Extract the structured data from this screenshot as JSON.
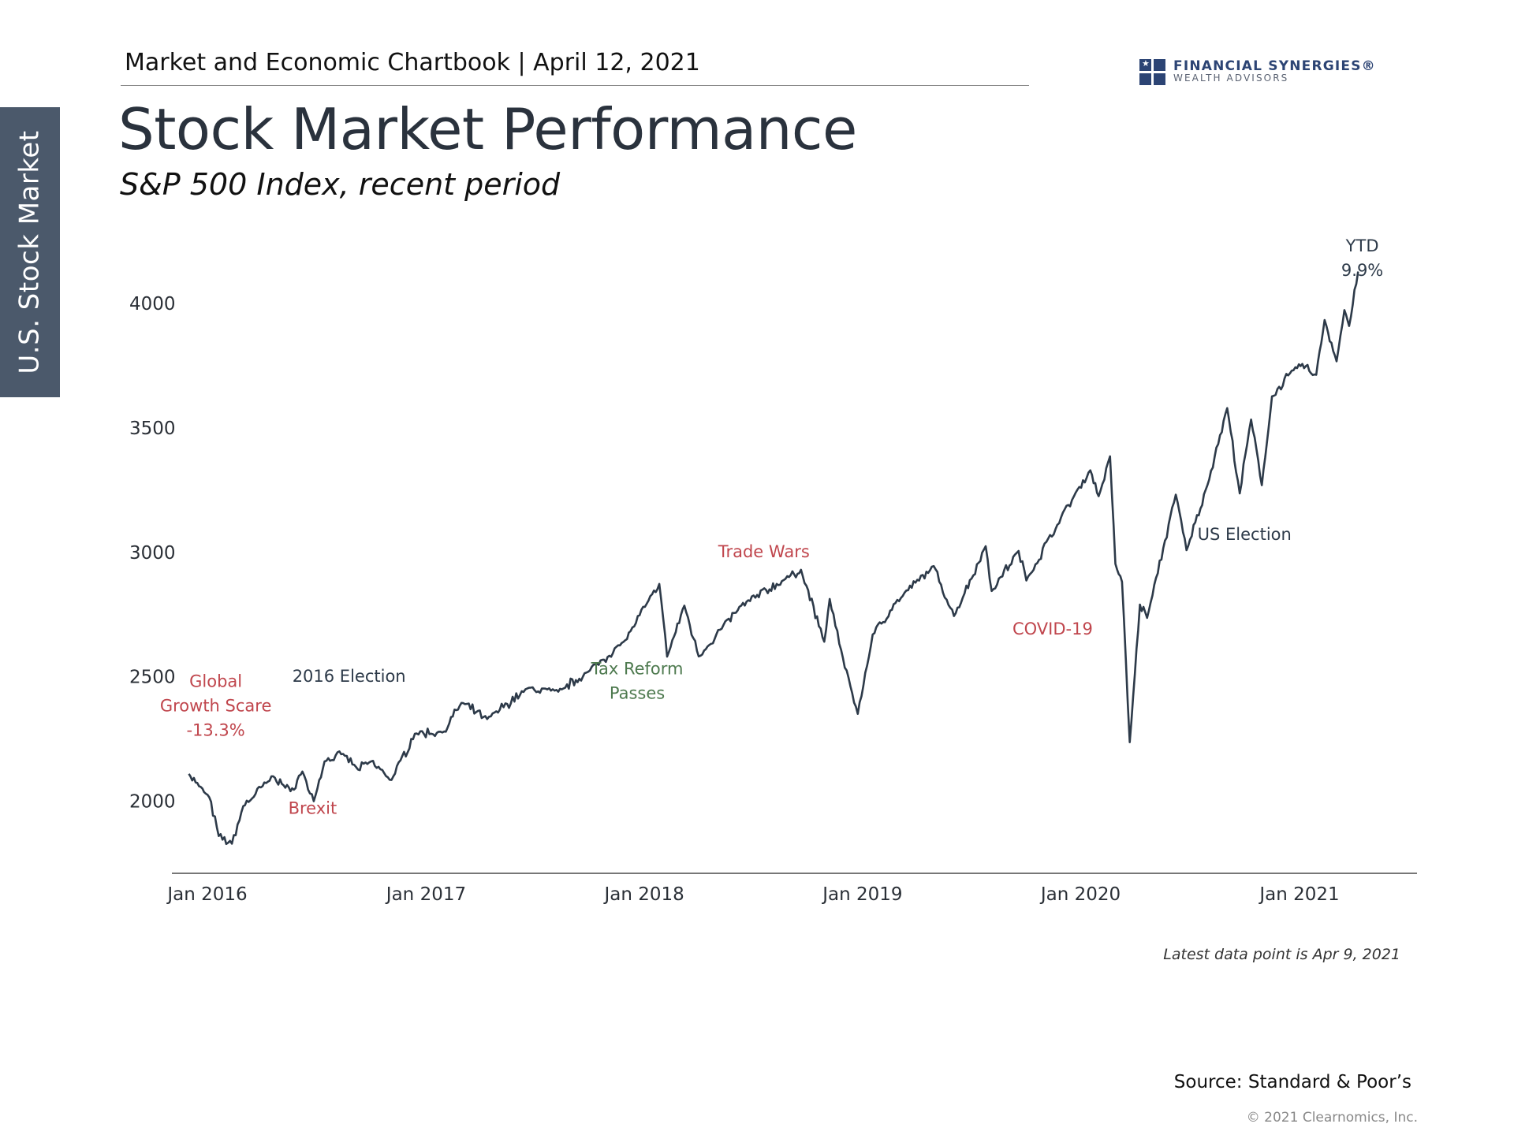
{
  "sidebar": {
    "label": "U.S. Stock Market"
  },
  "header": {
    "text": "Market and Economic Chartbook | April 12, 2021"
  },
  "logo": {
    "line1": "FINANCIAL SYNERGIES®",
    "line2": "WEALTH ADVISORS",
    "color": "#2c4474"
  },
  "title": "Stock Market Performance",
  "subtitle": "S&P 500 Index, recent period",
  "note": "Latest data point is Apr 9, 2021",
  "source": "Source: Standard & Poor’s",
  "copyright": "© 2021 Clearnomics, Inc.",
  "chart_data": {
    "type": "line",
    "title": "",
    "xlabel": "",
    "ylabel": "",
    "ylim": [
      1710,
      4270
    ],
    "xlim": [
      "2016-01-01",
      "2021-04-30"
    ],
    "yticks": [
      2000,
      2500,
      3000,
      3500,
      4000
    ],
    "xticks": [
      {
        "date": "2016-01-01",
        "label": "Jan 2016"
      },
      {
        "date": "2017-01-01",
        "label": "Jan 2017"
      },
      {
        "date": "2018-01-01",
        "label": "Jan 2018"
      },
      {
        "date": "2019-01-01",
        "label": "Jan 2019"
      },
      {
        "date": "2020-01-01",
        "label": "Jan 2020"
      },
      {
        "date": "2021-01-01",
        "label": "Jan 2021"
      }
    ],
    "grid": false,
    "line_color": "#2d3a49",
    "series": [
      {
        "name": "",
        "points": [
          [
            "2015-12-01",
            2110
          ],
          [
            "2015-12-18",
            2060
          ],
          [
            "2016-01-04",
            2016
          ],
          [
            "2016-01-20",
            1860
          ],
          [
            "2016-02-11",
            1829
          ],
          [
            "2016-03-01",
            1980
          ],
          [
            "2016-04-20",
            2100
          ],
          [
            "2016-05-19",
            2040
          ],
          [
            "2016-06-08",
            2119
          ],
          [
            "2016-06-27",
            2000
          ],
          [
            "2016-07-15",
            2160
          ],
          [
            "2016-08-15",
            2190
          ],
          [
            "2016-09-09",
            2127
          ],
          [
            "2016-10-01",
            2160
          ],
          [
            "2016-11-04",
            2085
          ],
          [
            "2016-12-13",
            2271
          ],
          [
            "2017-01-31",
            2280
          ],
          [
            "2017-03-01",
            2395
          ],
          [
            "2017-04-13",
            2330
          ],
          [
            "2017-06-19",
            2453
          ],
          [
            "2017-08-10",
            2440
          ],
          [
            "2017-09-29",
            2520
          ],
          [
            "2017-11-30",
            2647
          ],
          [
            "2018-01-26",
            2873
          ],
          [
            "2018-02-08",
            2581
          ],
          [
            "2018-03-09",
            2786
          ],
          [
            "2018-04-02",
            2582
          ],
          [
            "2018-06-12",
            2786
          ],
          [
            "2018-08-31",
            2901
          ],
          [
            "2018-09-20",
            2930
          ],
          [
            "2018-10-29",
            2641
          ],
          [
            "2018-11-07",
            2813
          ],
          [
            "2018-11-23",
            2633
          ],
          [
            "2018-12-24",
            2351
          ],
          [
            "2019-01-18",
            2670
          ],
          [
            "2019-02-25",
            2796
          ],
          [
            "2019-04-30",
            2945
          ],
          [
            "2019-06-03",
            2744
          ],
          [
            "2019-07-26",
            3025
          ],
          [
            "2019-08-05",
            2845
          ],
          [
            "2019-09-19",
            3006
          ],
          [
            "2019-10-02",
            2887
          ],
          [
            "2019-11-29",
            3140
          ],
          [
            "2020-01-17",
            3330
          ],
          [
            "2020-01-31",
            3226
          ],
          [
            "2020-02-19",
            3386
          ],
          [
            "2020-02-28",
            2954
          ],
          [
            "2020-03-10",
            2882
          ],
          [
            "2020-03-23",
            2237
          ],
          [
            "2020-04-09",
            2790
          ],
          [
            "2020-04-21",
            2737
          ],
          [
            "2020-06-08",
            3232
          ],
          [
            "2020-06-26",
            3009
          ],
          [
            "2020-07-31",
            3271
          ],
          [
            "2020-09-02",
            3580
          ],
          [
            "2020-09-23",
            3237
          ],
          [
            "2020-10-12",
            3534
          ],
          [
            "2020-10-30",
            3270
          ],
          [
            "2020-11-16",
            3627
          ],
          [
            "2020-12-31",
            3756
          ],
          [
            "2021-01-29",
            3714
          ],
          [
            "2021-02-12",
            3934
          ],
          [
            "2021-03-04",
            3768
          ],
          [
            "2021-03-17",
            3974
          ],
          [
            "2021-03-25",
            3910
          ],
          [
            "2021-04-09",
            4129
          ]
        ]
      }
    ],
    "annotations": [
      {
        "lines": [
          "Global",
          "Growth Scare",
          "-13.3%"
        ],
        "date": "2016-01-15",
        "y": 2460,
        "color": "#c0464d"
      },
      {
        "lines": [
          "Brexit"
        ],
        "date": "2016-06-25",
        "y": 1950,
        "color": "#c0464d"
      },
      {
        "lines": [
          "2016 Election"
        ],
        "date": "2016-08-25",
        "y": 2480,
        "color": "#2d3a49"
      },
      {
        "lines": [
          "Tax Reform",
          "Passes"
        ],
        "date": "2017-12-20",
        "y": 2510,
        "color": "#4e7a4f"
      },
      {
        "lines": [
          "Trade Wars"
        ],
        "date": "2018-07-20",
        "y": 2980,
        "color": "#c0464d"
      },
      {
        "lines": [
          "COVID-19"
        ],
        "date": "2019-11-15",
        "y": 2670,
        "color": "#c0464d"
      },
      {
        "lines": [
          "US Election"
        ],
        "date": "2020-10-01",
        "y": 3050,
        "color": "#2d3a49"
      },
      {
        "lines": [
          "YTD",
          "9.9%"
        ],
        "date": "2021-04-16",
        "y": 4210,
        "color": "#2d3a49"
      }
    ]
  }
}
